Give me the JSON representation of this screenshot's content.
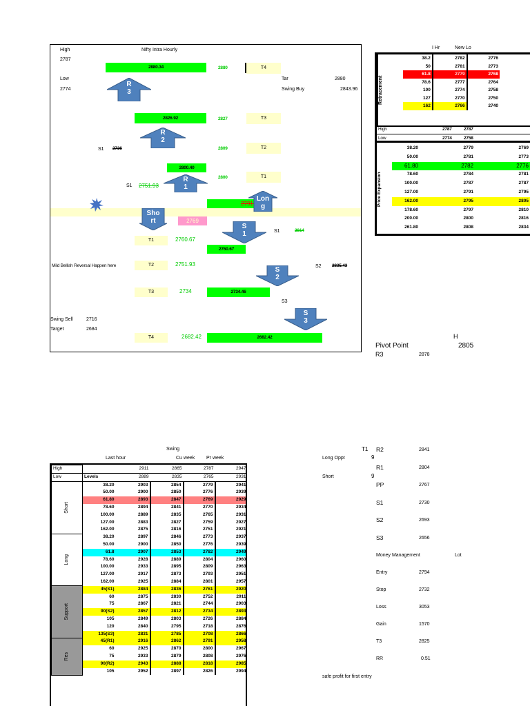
{
  "chart": {
    "title": "Nifty Intra Hourly",
    "high_label": "High",
    "high_value": "2787",
    "low_label": "Low",
    "low_value": "2774",
    "r3_box": "2880.34",
    "r3_val": "2880",
    "t4_top": "T4",
    "tar_label": "Tar",
    "tar_value": "2880",
    "swing_buy_label": "Swing Buy",
    "swing_buy_value": "2843.96",
    "r2_box": "2826.92",
    "r2_val": "2827",
    "t3_top": "T3",
    "s1_label_a": "S1",
    "s1_value_a": "2736",
    "t2_top_val": "2809",
    "t2_top": "T2",
    "r1_box": "2800.40",
    "r1_val": "2800",
    "t1_top": "T1",
    "s1_label_b": "S1",
    "s1_value_b": "2751.93",
    "mid_box": "2791.51",
    "pink_box": "2769",
    "s1_right_label": "S1",
    "s1_right_value": "2814",
    "t1_bot": "T1",
    "t1_bot_val": "2760.67",
    "s1_box": "2760.67",
    "bearish_text": "Mild Bellish Reversal Happen here",
    "t2_bot": "T2",
    "t2_bot_val": "2751.93",
    "s2_right_label": "S2",
    "s2_right_value": "2835.43",
    "t3_bot": "T3",
    "t3_bot_val": "2734",
    "s2_box": "2734.46",
    "s3_label": "S3",
    "swing_sell_label": "Swing Sell",
    "swing_sell_value": "2716",
    "target_label": "Target",
    "target_value": "2684",
    "t4_bot": "T4",
    "t4_bot_val": "2682.42",
    "s3_box": "2682.42",
    "arrows": {
      "r3": "R\n3",
      "r2": "R\n2",
      "r1": "R\n1",
      "long": "Lon\ng",
      "short": "Sho\nrt",
      "s1": "S\n1",
      "s2": "S\n2",
      "s3": "S\n3"
    }
  },
  "retracement": {
    "header": [
      "I Hr",
      "New Lo"
    ],
    "label": "Retracement",
    "rows": [
      [
        "38.2",
        "2782",
        "2776"
      ],
      [
        "50",
        "2781",
        "2773"
      ],
      [
        "61.8",
        "2779",
        "2768"
      ],
      [
        "78.6",
        "2777",
        "2764"
      ],
      [
        "100",
        "2774",
        "2758"
      ],
      [
        "127",
        "2770",
        "2750"
      ],
      [
        "162",
        "2766",
        "2740"
      ]
    ],
    "high": [
      "High",
      "2787",
      "2787"
    ],
    "low": [
      "Low",
      "2774",
      "2758"
    ],
    "exp_label": "Price Expansion",
    "exp_rows": [
      [
        "38.20",
        "2779",
        "2769"
      ],
      [
        "50.00",
        "2781",
        "2773"
      ],
      [
        "61.80",
        "2782",
        "2776"
      ],
      [
        "78.60",
        "2784",
        "2781"
      ],
      [
        "100.00",
        "2787",
        "2787"
      ],
      [
        "127.00",
        "2791",
        "2795"
      ],
      [
        "162.00",
        "2795",
        "2805"
      ],
      [
        "178.60",
        "2797",
        "2810"
      ],
      [
        "200.00",
        "2800",
        "2816"
      ],
      [
        "261.80",
        "2808",
        "2834"
      ]
    ]
  },
  "pivot": {
    "h": "H",
    "label": "Pivot Point",
    "value": "2805",
    "r3_label": "R3",
    "r3_value": "2878"
  },
  "swing_table": {
    "swing": "Swing",
    "headers": [
      "Last hour",
      "Cu week",
      "Pr week"
    ],
    "high": [
      "High",
      "",
      "2911",
      "2865",
      "2787",
      "2947"
    ],
    "low": [
      "Low",
      "Levels",
      "2889",
      "2835",
      "2765",
      "2931"
    ],
    "short_label": "Short",
    "short_rows": [
      [
        "38.20",
        "2903",
        "2854",
        "2779",
        "2941"
      ],
      [
        "50.00",
        "2900",
        "2850",
        "2776",
        "2939"
      ],
      [
        "61.80",
        "2893",
        "2847",
        "2769",
        "2929"
      ],
      [
        "78.60",
        "2894",
        "2841",
        "2770",
        "2934"
      ],
      [
        "100.00",
        "2889",
        "2835",
        "2765",
        "2931"
      ],
      [
        "127.00",
        "2883",
        "2827",
        "2759",
        "2927"
      ],
      [
        "162.00",
        "2875",
        "2816",
        "2751",
        "2921"
      ]
    ],
    "long_label": "Long",
    "long_rows": [
      [
        "38.20",
        "2897",
        "2846",
        "2773",
        "2937"
      ],
      [
        "50.00",
        "2900",
        "2850",
        "2776",
        "2939"
      ],
      [
        "61.8",
        "2907",
        "2853",
        "2782",
        "2949"
      ],
      [
        "78.60",
        "2928",
        "2889",
        "2804",
        "2960"
      ],
      [
        "100.00",
        "2933",
        "2895",
        "2809",
        "2963"
      ],
      [
        "127.00",
        "2917",
        "2873",
        "2793",
        "2951"
      ],
      [
        "162.00",
        "2925",
        "2884",
        "2801",
        "2957"
      ]
    ],
    "support_label": "Support",
    "support_rows": [
      [
        "45(S1)",
        "2884",
        "2836",
        "2761",
        "2920"
      ],
      [
        "60",
        "2875",
        "2830",
        "2752",
        "2911"
      ],
      [
        "75",
        "2867",
        "2821",
        "2744",
        "2903"
      ],
      [
        "90(S2)",
        "2857",
        "2812",
        "2734",
        "2893"
      ],
      [
        "105",
        "2849",
        "2803",
        "2726",
        "2884"
      ],
      [
        "120",
        "2840",
        "2795",
        "2718",
        "2876"
      ],
      [
        "135(S3)",
        "2831",
        "2785",
        "2708",
        "2866"
      ]
    ],
    "res_label": "Res",
    "res_rows": [
      [
        "45(R1)",
        "2916",
        "2862",
        "2791",
        "2958"
      ],
      [
        "60",
        "2925",
        "2870",
        "2800",
        "2967"
      ],
      [
        "75",
        "2933",
        "2879",
        "2808",
        "2976"
      ],
      [
        "90(R2)",
        "2943",
        "2888",
        "2818",
        "2985"
      ],
      [
        "105",
        "2952",
        "2897",
        "2826",
        "2994"
      ]
    ]
  },
  "levels": {
    "t1": "T1",
    "long_opp_label": "Long Oppt",
    "long_opp_value": "9",
    "short_label": "Short",
    "short_value": "9",
    "rows": [
      [
        "R2",
        "2841"
      ],
      [
        "R1",
        "2804"
      ],
      [
        "PP",
        "2767"
      ],
      [
        "S1",
        "2730"
      ],
      [
        "S2",
        "2693"
      ],
      [
        "S3",
        "2656"
      ]
    ],
    "mm_label": "Money Management",
    "lot_label": "Lot",
    "mm_rows": [
      [
        "Entry",
        "2794"
      ],
      [
        "Stop",
        "2732"
      ],
      [
        "Loss",
        "3053"
      ],
      [
        "Gain",
        "1570"
      ],
      [
        "T3",
        "2825"
      ],
      [
        "RR",
        "0.51"
      ]
    ],
    "note": "safe profit for first entry"
  }
}
